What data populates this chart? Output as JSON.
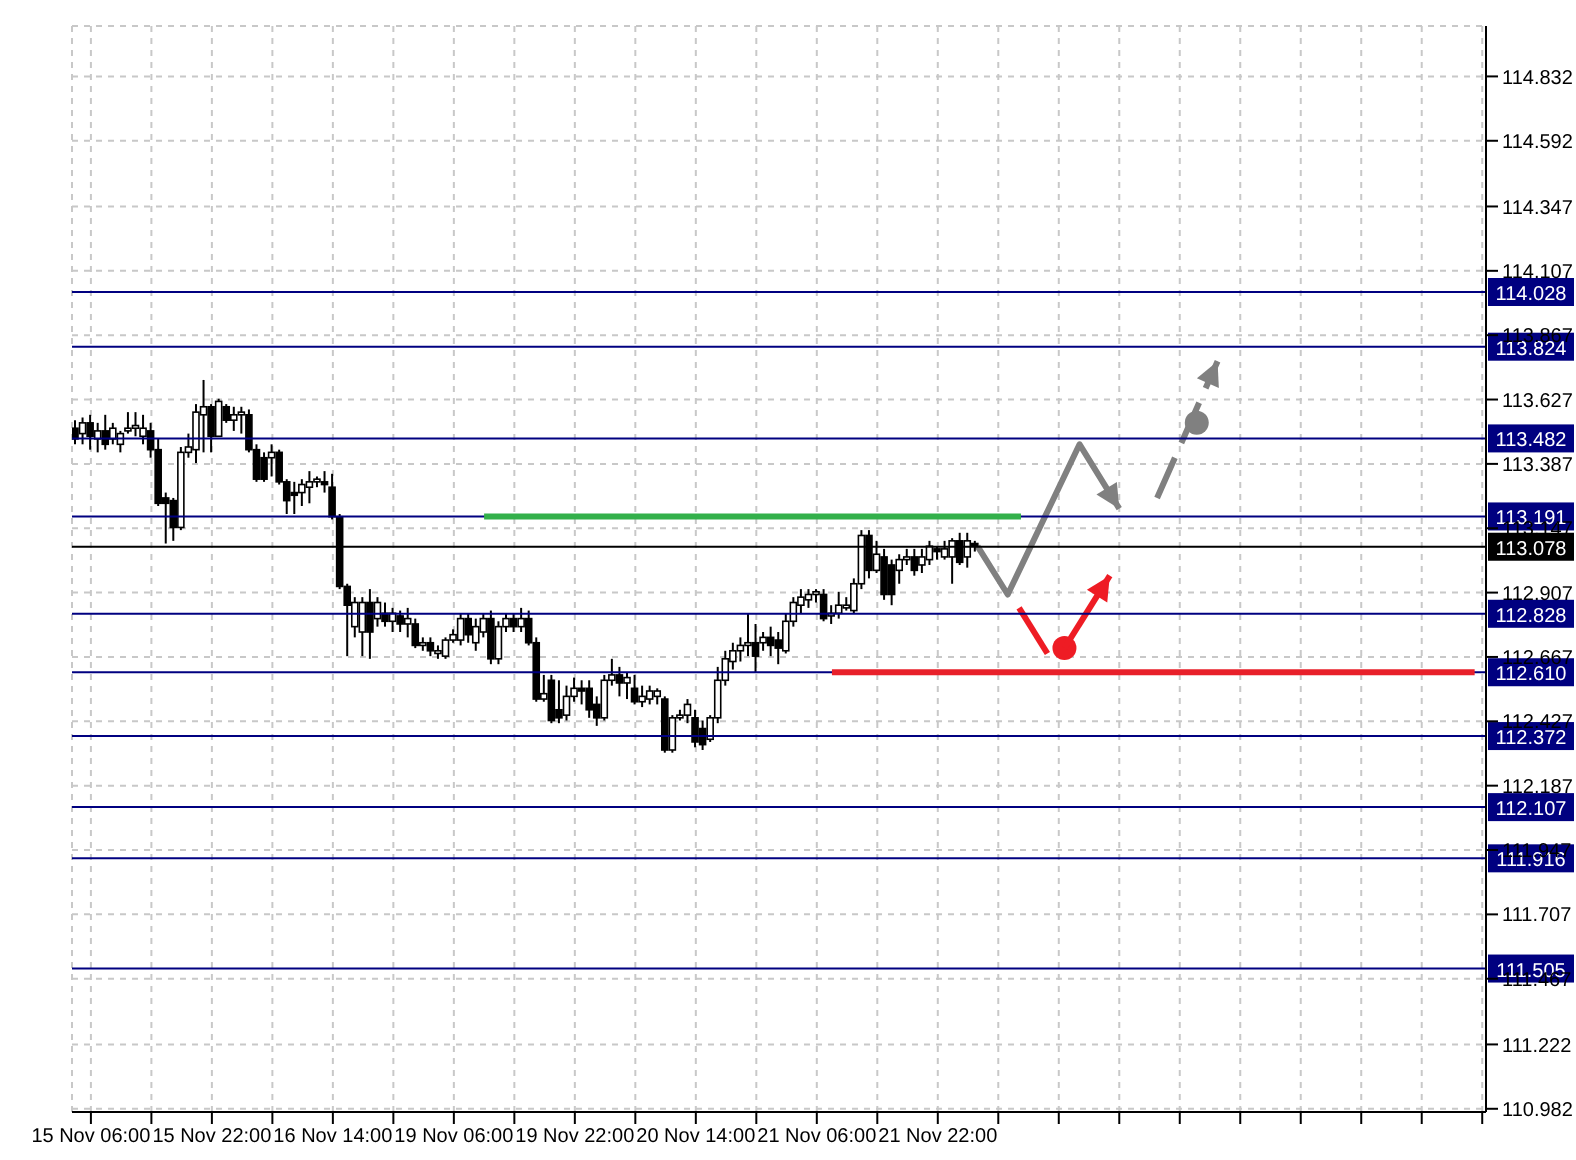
{
  "chart_data": {
    "type": "candlestick",
    "color": "#000000",
    "categories": [
      null,
      null,
      "15 Nov 06:00",
      null,
      null,
      null,
      null,
      null,
      null,
      null,
      null,
      null,
      null,
      null,
      null,
      null,
      null,
      null,
      "15 Nov 22:00",
      null,
      null,
      null,
      null,
      null,
      null,
      null,
      null,
      null,
      null,
      null,
      null,
      null,
      null,
      null,
      "16 Nov 14:00",
      null,
      null,
      null,
      null,
      null,
      null,
      null,
      null,
      null,
      null,
      null,
      null,
      null,
      null,
      null,
      "19 Nov 06:00",
      null,
      null,
      null,
      null,
      null,
      null,
      null,
      null,
      null,
      null,
      null,
      null,
      null,
      null,
      null,
      "19 Nov 22:00",
      null,
      null,
      null,
      null,
      null,
      null,
      null,
      null,
      null,
      null,
      null,
      null,
      null,
      null,
      null,
      "20 Nov 14:00",
      null,
      null,
      null,
      null,
      null,
      null,
      null,
      null,
      null,
      null,
      null,
      null,
      null,
      null,
      null,
      "21 Nov 06:00",
      null,
      null,
      null,
      null,
      null,
      null,
      null,
      null,
      null,
      null,
      null,
      null,
      null,
      null,
      null,
      "21 Nov 22:00",
      null,
      null,
      null,
      null,
      null,
      null,
      null,
      null,
      null,
      null,
      null,
      null,
      null,
      null,
      null,
      null,
      null,
      null,
      null,
      null,
      null,
      null,
      null,
      null,
      null,
      null,
      null,
      null,
      null,
      null,
      null,
      null,
      null,
      null,
      null,
      null,
      null,
      null,
      null,
      null,
      null,
      null,
      null,
      null,
      null,
      null,
      null,
      null,
      null,
      null,
      null,
      null,
      null,
      null,
      null,
      null,
      null,
      null,
      null,
      null,
      null,
      null,
      null,
      null,
      null,
      null,
      null,
      null,
      null,
      null,
      null,
      null
    ],
    "ohlc": [
      [
        113.52,
        113.55,
        113.46,
        113.48
      ],
      [
        113.5,
        113.56,
        113.46,
        113.54
      ],
      [
        113.54,
        113.57,
        113.44,
        113.49
      ],
      [
        113.48,
        113.54,
        113.43,
        113.51
      ],
      [
        113.51,
        113.57,
        113.44,
        113.46
      ],
      [
        113.48,
        113.54,
        113.46,
        113.52
      ],
      [
        113.46,
        113.51,
        113.43,
        113.5
      ],
      [
        113.51,
        113.58,
        113.5,
        113.52
      ],
      [
        113.52,
        113.58,
        113.49,
        113.53
      ],
      [
        113.49,
        113.57,
        113.46,
        113.52
      ],
      [
        113.51,
        113.54,
        113.41,
        113.44
      ],
      [
        113.44,
        113.48,
        113.23,
        113.24
      ],
      [
        113.26,
        113.28,
        113.09,
        113.24
      ],
      [
        113.25,
        113.26,
        113.1,
        113.15
      ],
      [
        113.15,
        113.45,
        113.14,
        113.43
      ],
      [
        113.43,
        113.5,
        113.41,
        113.45
      ],
      [
        113.44,
        113.61,
        113.39,
        113.58
      ],
      [
        113.57,
        113.7,
        113.43,
        113.6
      ],
      [
        113.6,
        113.61,
        113.43,
        113.49
      ],
      [
        113.49,
        113.63,
        113.49,
        113.62
      ],
      [
        113.6,
        113.61,
        113.54,
        113.55
      ],
      [
        113.55,
        113.6,
        113.51,
        113.57
      ],
      [
        113.57,
        113.6,
        113.5,
        113.58
      ],
      [
        113.57,
        113.59,
        113.43,
        113.44
      ],
      [
        113.44,
        113.46,
        113.32,
        113.33
      ],
      [
        113.41,
        113.43,
        113.32,
        113.33
      ],
      [
        113.41,
        113.46,
        113.34,
        113.43
      ],
      [
        113.43,
        113.44,
        113.31,
        113.32
      ],
      [
        113.32,
        113.33,
        113.2,
        113.25
      ],
      [
        113.28,
        113.32,
        113.2,
        113.27
      ],
      [
        113.28,
        113.33,
        113.23,
        113.31
      ],
      [
        113.3,
        113.36,
        113.24,
        113.32
      ],
      [
        113.32,
        113.34,
        113.3,
        113.33
      ],
      [
        113.32,
        113.36,
        113.28,
        113.31
      ],
      [
        113.3,
        113.35,
        113.18,
        113.19
      ],
      [
        113.19,
        113.2,
        112.92,
        112.93
      ],
      [
        112.93,
        112.94,
        112.67,
        112.86
      ],
      [
        112.78,
        112.89,
        112.74,
        112.87
      ],
      [
        112.76,
        112.89,
        112.67,
        112.87
      ],
      [
        112.87,
        112.92,
        112.66,
        112.76
      ],
      [
        112.81,
        112.89,
        112.78,
        112.87
      ],
      [
        112.83,
        112.87,
        112.78,
        112.8
      ],
      [
        112.8,
        112.85,
        112.76,
        112.83
      ],
      [
        112.82,
        112.84,
        112.76,
        112.79
      ],
      [
        112.79,
        112.85,
        112.74,
        112.81
      ],
      [
        112.79,
        112.81,
        112.7,
        112.71
      ],
      [
        112.71,
        112.74,
        112.69,
        112.72
      ],
      [
        112.72,
        112.74,
        112.67,
        112.69
      ],
      [
        112.68,
        112.71,
        112.66,
        112.69
      ],
      [
        112.67,
        112.74,
        112.66,
        112.73
      ],
      [
        112.73,
        112.77,
        112.72,
        112.75
      ],
      [
        112.73,
        112.83,
        112.71,
        112.81
      ],
      [
        112.81,
        112.83,
        112.72,
        112.75
      ],
      [
        112.72,
        112.81,
        112.69,
        112.78
      ],
      [
        112.76,
        112.83,
        112.74,
        112.81
      ],
      [
        112.81,
        112.84,
        112.64,
        112.66
      ],
      [
        112.66,
        112.8,
        112.64,
        112.78
      ],
      [
        112.78,
        112.83,
        112.76,
        112.81
      ],
      [
        112.81,
        112.83,
        112.76,
        112.78
      ],
      [
        112.78,
        112.85,
        112.76,
        112.81
      ],
      [
        112.81,
        112.84,
        112.71,
        112.72
      ],
      [
        112.72,
        112.74,
        112.5,
        112.51
      ],
      [
        112.51,
        112.6,
        112.5,
        112.53
      ],
      [
        112.58,
        112.6,
        112.42,
        112.43
      ],
      [
        112.47,
        112.58,
        112.42,
        112.44
      ],
      [
        112.45,
        112.56,
        112.43,
        112.52
      ],
      [
        112.52,
        112.59,
        112.5,
        112.55
      ],
      [
        112.55,
        112.58,
        112.49,
        112.54
      ],
      [
        112.55,
        112.58,
        112.44,
        112.47
      ],
      [
        112.49,
        112.52,
        112.41,
        112.44
      ],
      [
        112.44,
        112.6,
        112.43,
        112.58
      ],
      [
        112.58,
        112.66,
        112.56,
        112.6
      ],
      [
        112.6,
        112.63,
        112.52,
        112.57
      ],
      [
        112.57,
        112.61,
        112.51,
        112.59
      ],
      [
        112.55,
        112.6,
        112.49,
        112.5
      ],
      [
        112.5,
        112.56,
        112.48,
        112.52
      ],
      [
        112.51,
        112.56,
        112.49,
        112.54
      ],
      [
        112.52,
        112.55,
        112.49,
        112.54
      ],
      [
        112.51,
        112.52,
        112.31,
        112.32
      ],
      [
        112.32,
        112.45,
        112.31,
        112.44
      ],
      [
        112.44,
        112.47,
        112.43,
        112.45
      ],
      [
        112.45,
        112.51,
        112.42,
        112.49
      ],
      [
        112.44,
        112.47,
        112.33,
        112.35
      ],
      [
        112.4,
        112.43,
        112.32,
        112.34
      ],
      [
        112.36,
        112.45,
        112.35,
        112.44
      ],
      [
        112.44,
        112.63,
        112.42,
        112.58
      ],
      [
        112.58,
        112.69,
        112.56,
        112.66
      ],
      [
        112.65,
        112.72,
        112.62,
        112.69
      ],
      [
        112.69,
        112.74,
        112.65,
        112.71
      ],
      [
        112.71,
        112.83,
        112.67,
        112.72
      ],
      [
        112.72,
        112.79,
        112.61,
        112.67
      ],
      [
        112.72,
        112.76,
        112.69,
        112.74
      ],
      [
        112.74,
        112.78,
        112.67,
        112.71
      ],
      [
        112.73,
        112.76,
        112.64,
        112.7
      ],
      [
        112.69,
        112.83,
        112.68,
        112.8
      ],
      [
        112.8,
        112.89,
        112.78,
        112.87
      ],
      [
        112.86,
        112.92,
        112.83,
        112.89
      ],
      [
        112.88,
        112.92,
        112.85,
        112.9
      ],
      [
        112.9,
        112.92,
        112.87,
        112.91
      ],
      [
        112.9,
        112.92,
        112.8,
        112.81
      ],
      [
        112.82,
        112.86,
        112.79,
        112.83
      ],
      [
        112.83,
        112.91,
        112.81,
        112.86
      ],
      [
        112.85,
        112.89,
        112.84,
        112.86
      ],
      [
        112.84,
        112.96,
        112.83,
        112.94
      ],
      [
        112.94,
        113.14,
        112.92,
        113.12
      ],
      [
        113.12,
        113.14,
        112.96,
        112.99
      ],
      [
        112.99,
        113.1,
        112.98,
        113.05
      ],
      [
        113.04,
        113.07,
        112.88,
        112.9
      ],
      [
        113.01,
        113.03,
        112.86,
        112.9
      ],
      [
        112.99,
        113.05,
        112.94,
        113.03
      ],
      [
        113.03,
        113.07,
        113.01,
        113.04
      ],
      [
        113.04,
        113.07,
        112.97,
        112.99
      ],
      [
        113.01,
        113.07,
        112.98,
        113.04
      ],
      [
        113.03,
        113.1,
        113.01,
        113.08
      ],
      [
        113.07,
        113.08,
        113.03,
        113.06
      ],
      [
        113.04,
        113.1,
        113.03,
        113.07
      ],
      [
        113.04,
        113.11,
        112.94,
        113.1
      ],
      [
        113.1,
        113.13,
        113.01,
        113.02
      ],
      [
        113.04,
        113.13,
        113.0,
        113.1
      ],
      [
        113.09,
        113.1,
        113.06,
        113.08
      ],
      null,
      null,
      null,
      null,
      null,
      null,
      null,
      null,
      null,
      null,
      null,
      null,
      null,
      null,
      null,
      null,
      null,
      null,
      null,
      null,
      null,
      null,
      null,
      null,
      null,
      null,
      null,
      null,
      null,
      null,
      null,
      null,
      null,
      null,
      null,
      null,
      null,
      null,
      null,
      null,
      null,
      null,
      null,
      null,
      null,
      null,
      null,
      null,
      null,
      null,
      null,
      null,
      null,
      null,
      null,
      null,
      null,
      null,
      null,
      null,
      null,
      null,
      null,
      null,
      null,
      null,
      null
    ],
    "series": [
      {
        "type": "line",
        "color": "#33b04a",
        "values": [
          null,
          null,
          null,
          null,
          null,
          null,
          null,
          null,
          null,
          null,
          null,
          null,
          null,
          null,
          null,
          null,
          null,
          null,
          null,
          null,
          null,
          null,
          null,
          null,
          null,
          null,
          null,
          null,
          null,
          null,
          null,
          null,
          null,
          null,
          null,
          null,
          null,
          null,
          null,
          null,
          null,
          null,
          null,
          null,
          null,
          null,
          null,
          null,
          null,
          null,
          null,
          null,
          null,
          null,
          113.191,
          null,
          null,
          null,
          null,
          null,
          null,
          null,
          null,
          null,
          null,
          null,
          null,
          null,
          null,
          null,
          null,
          null,
          null,
          null,
          null,
          null,
          null,
          null,
          null,
          null,
          null,
          null,
          null,
          null,
          null,
          null,
          null,
          null,
          null,
          null,
          null,
          null,
          null,
          null,
          null,
          null,
          null,
          null,
          null,
          null,
          null,
          null,
          null,
          null,
          null,
          null,
          null,
          null,
          null,
          null,
          null,
          null,
          null,
          null,
          null,
          null,
          null,
          null,
          null,
          null,
          null,
          null,
          null,
          null,
          null,
          113.191,
          null,
          null,
          null,
          null,
          null,
          null,
          null,
          null,
          null,
          null,
          null,
          null,
          null,
          null,
          null,
          null,
          null,
          null,
          null,
          null,
          null,
          null,
          null,
          null,
          null,
          null,
          null,
          null,
          null,
          null,
          null,
          null,
          null,
          null,
          null,
          null,
          null,
          null,
          null,
          null,
          null,
          null,
          null,
          null,
          null,
          null,
          null,
          null,
          null,
          null,
          null,
          null,
          null,
          null,
          null,
          null,
          null,
          null,
          null,
          null,
          null
        ]
      },
      {
        "type": "line",
        "color": "#e8202a",
        "values": [
          null,
          null,
          null,
          null,
          null,
          null,
          null,
          null,
          null,
          null,
          null,
          null,
          null,
          null,
          null,
          null,
          null,
          null,
          null,
          null,
          null,
          null,
          null,
          null,
          null,
          null,
          null,
          null,
          null,
          null,
          null,
          null,
          null,
          null,
          null,
          null,
          null,
          null,
          null,
          null,
          null,
          null,
          null,
          null,
          null,
          null,
          null,
          null,
          null,
          null,
          null,
          null,
          null,
          null,
          null,
          null,
          null,
          null,
          null,
          null,
          null,
          null,
          null,
          null,
          null,
          null,
          null,
          null,
          null,
          null,
          null,
          null,
          null,
          null,
          null,
          null,
          null,
          null,
          null,
          null,
          null,
          null,
          null,
          null,
          null,
          null,
          null,
          null,
          null,
          null,
          null,
          null,
          null,
          null,
          null,
          null,
          null,
          null,
          null,
          null,
          112.61,
          null,
          null,
          null,
          null,
          null,
          null,
          null,
          null,
          null,
          null,
          null,
          null,
          null,
          null,
          null,
          null,
          null,
          null,
          null,
          null,
          null,
          null,
          null,
          null,
          null,
          null,
          null,
          null,
          null,
          null,
          null,
          null,
          null,
          null,
          null,
          null,
          null,
          null,
          null,
          null,
          null,
          null,
          null,
          null,
          null,
          null,
          null,
          null,
          null,
          null,
          null,
          null,
          null,
          null,
          null,
          null,
          null,
          null,
          null,
          null,
          null,
          null,
          null,
          null,
          null,
          null,
          null,
          null,
          null,
          null,
          null,
          null,
          null,
          null,
          null,
          null,
          null,
          null,
          null,
          null,
          null,
          null,
          null,
          null,
          112.61,
          null
        ]
      }
    ],
    "ylim": [
      110.97,
      115.02
    ],
    "yticks": [
      110.982,
      111.222,
      111.467,
      111.707,
      111.947,
      112.187,
      112.427,
      112.667,
      112.907,
      113.147,
      113.387,
      113.627,
      113.867,
      114.107,
      114.347,
      114.592,
      114.832
    ],
    "grid": true,
    "ref_lines": [
      {
        "axis": "y",
        "value": 114.028,
        "label": "114.028",
        "color": "#000080"
      },
      {
        "axis": "y",
        "value": 113.824,
        "label": "113.824",
        "color": "#000080"
      },
      {
        "axis": "y",
        "value": 113.482,
        "label": "113.482",
        "color": "#000080"
      },
      {
        "axis": "y",
        "value": 113.191,
        "label": "113.191",
        "color": "#000080"
      },
      {
        "axis": "y",
        "value": 113.078,
        "label": "113.078",
        "color": "#000000"
      },
      {
        "axis": "y",
        "value": 112.828,
        "label": "112.828",
        "color": "#000080"
      },
      {
        "axis": "y",
        "value": 112.61,
        "label": "112.610",
        "color": "#000080"
      },
      {
        "axis": "y",
        "value": 112.372,
        "label": "112.372",
        "color": "#000080"
      },
      {
        "axis": "y",
        "value": 112.107,
        "label": "112.107",
        "color": "#000080"
      },
      {
        "axis": "y",
        "value": 111.916,
        "label": "111.916",
        "color": "#000080"
      },
      {
        "axis": "y",
        "value": 111.505,
        "label": "111.505",
        "color": "#000080"
      }
    ]
  }
}
